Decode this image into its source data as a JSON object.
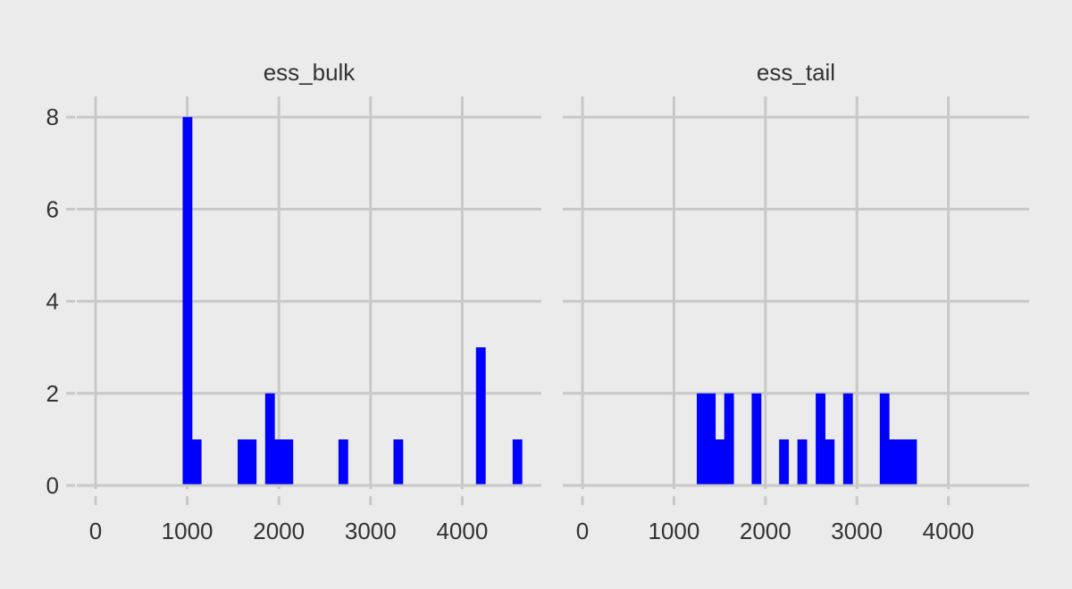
{
  "chart_data": {
    "type": "bar",
    "subtype": "faceted-histogram",
    "title": "",
    "xlabel": "",
    "ylabel": "",
    "xlim": [
      0,
      4700
    ],
    "ylim": [
      0,
      8.3
    ],
    "x_ticks": [
      0,
      1000,
      2000,
      3000,
      4000
    ],
    "y_ticks": [
      0,
      2,
      4,
      6,
      8
    ],
    "bin_width": 100,
    "grid": true,
    "bar_color": "#0000ff",
    "background_color": "#ebebeb",
    "grid_color": "#c8c8c8",
    "panels": [
      {
        "name": "ess_bulk",
        "bins": [
          {
            "x0": 950,
            "x1": 1050,
            "count": 8
          },
          {
            "x0": 1050,
            "x1": 1150,
            "count": 1
          },
          {
            "x0": 1550,
            "x1": 1650,
            "count": 1
          },
          {
            "x0": 1650,
            "x1": 1750,
            "count": 1
          },
          {
            "x0": 1850,
            "x1": 1950,
            "count": 2
          },
          {
            "x0": 1950,
            "x1": 2050,
            "count": 1
          },
          {
            "x0": 2050,
            "x1": 2150,
            "count": 1
          },
          {
            "x0": 2650,
            "x1": 2750,
            "count": 1
          },
          {
            "x0": 3250,
            "x1": 3350,
            "count": 1
          },
          {
            "x0": 4150,
            "x1": 4250,
            "count": 3
          },
          {
            "x0": 4550,
            "x1": 4650,
            "count": 1
          }
        ]
      },
      {
        "name": "ess_tail",
        "bins": [
          {
            "x0": 1250,
            "x1": 1350,
            "count": 2
          },
          {
            "x0": 1350,
            "x1": 1450,
            "count": 2
          },
          {
            "x0": 1450,
            "x1": 1550,
            "count": 1
          },
          {
            "x0": 1550,
            "x1": 1650,
            "count": 2
          },
          {
            "x0": 1850,
            "x1": 1950,
            "count": 2
          },
          {
            "x0": 2150,
            "x1": 2250,
            "count": 1
          },
          {
            "x0": 2350,
            "x1": 2450,
            "count": 1
          },
          {
            "x0": 2550,
            "x1": 2650,
            "count": 2
          },
          {
            "x0": 2650,
            "x1": 2750,
            "count": 1
          },
          {
            "x0": 2850,
            "x1": 2950,
            "count": 2
          },
          {
            "x0": 3250,
            "x1": 3350,
            "count": 2
          },
          {
            "x0": 3350,
            "x1": 3450,
            "count": 1
          },
          {
            "x0": 3450,
            "x1": 3550,
            "count": 1
          },
          {
            "x0": 3550,
            "x1": 3650,
            "count": 1
          }
        ]
      }
    ]
  }
}
